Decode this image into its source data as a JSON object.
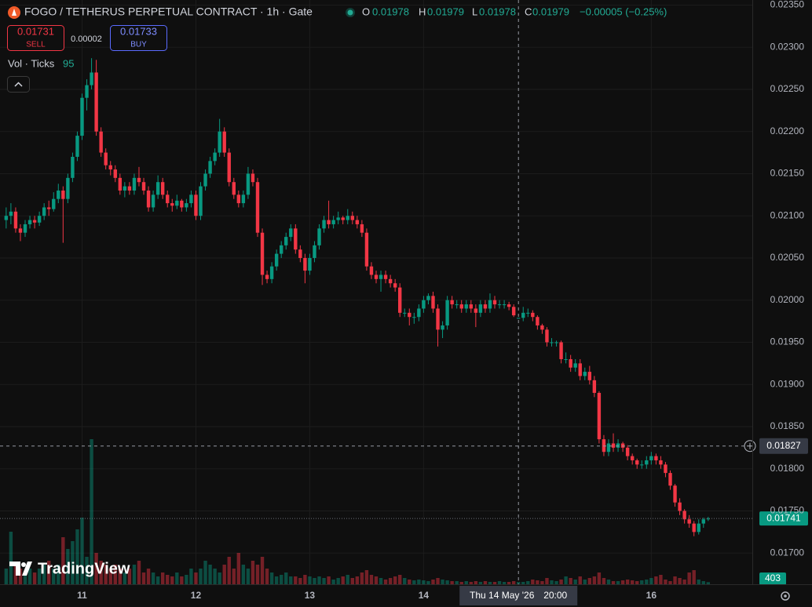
{
  "chart_data": {
    "type": "candlestick",
    "title": "FOGO / TETHERUS PERPETUAL CONTRACT · 1h · Gate",
    "legend": {
      "o_label": "O",
      "h_label": "H",
      "l_label": "L",
      "c_label": "C",
      "change": "−0.00005 (−0.25%)"
    },
    "sell": {
      "price": 0.01731,
      "label": "SELL"
    },
    "spread": 2e-05,
    "buy": {
      "price": 0.01733,
      "label": "BUY"
    },
    "volume_label": "Vol · Ticks",
    "ticks_value": 95,
    "watermark": "TradingView",
    "up_color": "#089981",
    "down_color": "#f23645",
    "ohlc": [
      [
        0.02095,
        0.0211,
        0.02085,
        0.021
      ],
      [
        0.021,
        0.02115,
        0.0209,
        0.02105
      ],
      [
        0.02105,
        0.0211,
        0.0208,
        0.02085
      ],
      [
        0.02085,
        0.0209,
        0.0207,
        0.0208
      ],
      [
        0.0208,
        0.02095,
        0.02075,
        0.0209
      ],
      [
        0.0209,
        0.021,
        0.02085,
        0.02095
      ],
      [
        0.02095,
        0.021,
        0.02085,
        0.02092
      ],
      [
        0.02092,
        0.02105,
        0.02088,
        0.021
      ],
      [
        0.021,
        0.02115,
        0.02095,
        0.0211
      ],
      [
        0.0211,
        0.02118,
        0.021,
        0.02108
      ],
      [
        0.02108,
        0.02128,
        0.02105,
        0.0212
      ],
      [
        0.0212,
        0.02138,
        0.02115,
        0.0213
      ],
      [
        0.0213,
        0.02135,
        0.02068,
        0.0212
      ],
      [
        0.0212,
        0.0215,
        0.02115,
        0.02145
      ],
      [
        0.02145,
        0.02175,
        0.0214,
        0.0217
      ],
      [
        0.0217,
        0.022,
        0.02165,
        0.02195
      ],
      [
        0.02195,
        0.02245,
        0.0219,
        0.0224
      ],
      [
        0.0224,
        0.02262,
        0.02225,
        0.02255
      ],
      [
        0.02255,
        0.02287,
        0.0225,
        0.0227
      ],
      [
        0.0227,
        0.02285,
        0.02195,
        0.022
      ],
      [
        0.022,
        0.02205,
        0.0217,
        0.02175
      ],
      [
        0.02175,
        0.0218,
        0.02155,
        0.0216
      ],
      [
        0.0216,
        0.02165,
        0.02148,
        0.02155
      ],
      [
        0.02155,
        0.0216,
        0.0214,
        0.02145
      ],
      [
        0.02145,
        0.0215,
        0.02125,
        0.0213
      ],
      [
        0.0213,
        0.0214,
        0.02122,
        0.02135
      ],
      [
        0.02135,
        0.0214,
        0.02125,
        0.0213
      ],
      [
        0.0213,
        0.0215,
        0.02125,
        0.02145
      ],
      [
        0.02145,
        0.02158,
        0.02135,
        0.0214
      ],
      [
        0.0214,
        0.02145,
        0.02125,
        0.0213
      ],
      [
        0.0213,
        0.02135,
        0.02105,
        0.0211
      ],
      [
        0.0211,
        0.0213,
        0.02105,
        0.02125
      ],
      [
        0.02125,
        0.02148,
        0.0212,
        0.0214
      ],
      [
        0.0214,
        0.02145,
        0.0212,
        0.02125
      ],
      [
        0.02125,
        0.0213,
        0.0211,
        0.02115
      ],
      [
        0.02115,
        0.0212,
        0.02105,
        0.02112
      ],
      [
        0.02112,
        0.02125,
        0.02108,
        0.02118
      ],
      [
        0.02118,
        0.0212,
        0.02105,
        0.0211
      ],
      [
        0.0211,
        0.0212,
        0.02105,
        0.02115
      ],
      [
        0.02115,
        0.0213,
        0.0211,
        0.02125
      ],
      [
        0.02125,
        0.0213,
        0.02095,
        0.021
      ],
      [
        0.021,
        0.0214,
        0.02095,
        0.02135
      ],
      [
        0.02135,
        0.02155,
        0.0213,
        0.0215
      ],
      [
        0.0215,
        0.0217,
        0.02145,
        0.02165
      ],
      [
        0.02165,
        0.0218,
        0.0216,
        0.02175
      ],
      [
        0.02175,
        0.02215,
        0.0217,
        0.022
      ],
      [
        0.022,
        0.02205,
        0.0217,
        0.02175
      ],
      [
        0.02175,
        0.0218,
        0.02135,
        0.0214
      ],
      [
        0.0214,
        0.02145,
        0.0212,
        0.02125
      ],
      [
        0.02125,
        0.0213,
        0.0211,
        0.02115
      ],
      [
        0.02115,
        0.0213,
        0.0211,
        0.02125
      ],
      [
        0.02125,
        0.02158,
        0.0212,
        0.0215
      ],
      [
        0.0215,
        0.02155,
        0.02135,
        0.0214
      ],
      [
        0.0214,
        0.02145,
        0.02075,
        0.0208
      ],
      [
        0.0208,
        0.02085,
        0.02018,
        0.0203
      ],
      [
        0.0203,
        0.02035,
        0.0202,
        0.02025
      ],
      [
        0.02025,
        0.02045,
        0.0202,
        0.0204
      ],
      [
        0.0204,
        0.0206,
        0.02035,
        0.02055
      ],
      [
        0.02055,
        0.0207,
        0.0205,
        0.02065
      ],
      [
        0.02065,
        0.0208,
        0.0206,
        0.02075
      ],
      [
        0.02075,
        0.0209,
        0.0207,
        0.02085
      ],
      [
        0.02085,
        0.0209,
        0.02055,
        0.0206
      ],
      [
        0.0206,
        0.02065,
        0.02045,
        0.0205
      ],
      [
        0.0205,
        0.02055,
        0.0202,
        0.02035
      ],
      [
        0.02035,
        0.02055,
        0.0203,
        0.0205
      ],
      [
        0.0205,
        0.0207,
        0.02045,
        0.02065
      ],
      [
        0.02065,
        0.0209,
        0.0206,
        0.02085
      ],
      [
        0.02085,
        0.021,
        0.0208,
        0.02095
      ],
      [
        0.02095,
        0.02118,
        0.02085,
        0.0209
      ],
      [
        0.0209,
        0.021,
        0.02085,
        0.02095
      ],
      [
        0.02095,
        0.02105,
        0.0209,
        0.02098
      ],
      [
        0.02098,
        0.021,
        0.0209,
        0.02095
      ],
      [
        0.02095,
        0.02108,
        0.0209,
        0.021
      ],
      [
        0.021,
        0.02105,
        0.0209,
        0.02095
      ],
      [
        0.02095,
        0.021,
        0.02085,
        0.0209
      ],
      [
        0.0209,
        0.02095,
        0.02075,
        0.0208
      ],
      [
        0.0208,
        0.02085,
        0.02035,
        0.0204
      ],
      [
        0.0204,
        0.02045,
        0.02025,
        0.0203
      ],
      [
        0.0203,
        0.02035,
        0.0202,
        0.02025
      ],
      [
        0.02025,
        0.02035,
        0.0201,
        0.0203
      ],
      [
        0.0203,
        0.02035,
        0.0202,
        0.02025
      ],
      [
        0.02025,
        0.0203,
        0.02015,
        0.0202
      ],
      [
        0.0202,
        0.02025,
        0.0201,
        0.02015
      ],
      [
        0.02015,
        0.0202,
        0.0198,
        0.01985
      ],
      [
        0.01985,
        0.0199,
        0.0198,
        0.01985
      ],
      [
        0.01985,
        0.0199,
        0.0197,
        0.0198
      ],
      [
        0.0198,
        0.01985,
        0.01972,
        0.0198
      ],
      [
        0.0198,
        0.01995,
        0.01975,
        0.0199
      ],
      [
        0.0199,
        0.02005,
        0.01985,
        0.02
      ],
      [
        0.02,
        0.02008,
        0.01995,
        0.02005
      ],
      [
        0.02005,
        0.0201,
        0.01985,
        0.0199
      ],
      [
        0.0199,
        0.01995,
        0.01945,
        0.01965
      ],
      [
        0.01965,
        0.01975,
        0.01955,
        0.0197
      ],
      [
        0.0197,
        0.02005,
        0.01965,
        0.02
      ],
      [
        0.02,
        0.02005,
        0.0199,
        0.01995
      ],
      [
        0.01995,
        0.02,
        0.0199,
        0.01995
      ],
      [
        0.01995,
        0.02,
        0.01985,
        0.0199
      ],
      [
        0.0199,
        0.02,
        0.01985,
        0.01995
      ],
      [
        0.01995,
        0.02,
        0.01985,
        0.0199
      ],
      [
        0.0199,
        0.01995,
        0.01968,
        0.01985
      ],
      [
        0.01985,
        0.02,
        0.0198,
        0.01995
      ],
      [
        0.01995,
        0.02,
        0.01985,
        0.0199
      ],
      [
        0.0199,
        0.02008,
        0.01985,
        0.02
      ],
      [
        0.02,
        0.02005,
        0.0199,
        0.01995
      ],
      [
        0.01995,
        0.02,
        0.0199,
        0.01995
      ],
      [
        0.01995,
        0.02,
        0.0199,
        0.01995
      ],
      [
        0.01995,
        0.01998,
        0.01988,
        0.01992
      ],
      [
        0.01992,
        0.01995,
        0.0198,
        0.01982
      ],
      [
        0.01978,
        0.01979,
        0.01978,
        0.01979
      ],
      [
        0.01979,
        0.01992,
        0.01975,
        0.01985
      ],
      [
        0.01985,
        0.0199,
        0.0198,
        0.01985
      ],
      [
        0.01985,
        0.01988,
        0.01975,
        0.0198
      ],
      [
        0.0198,
        0.01982,
        0.01965,
        0.0197
      ],
      [
        0.0197,
        0.01972,
        0.0196,
        0.01965
      ],
      [
        0.01965,
        0.01968,
        0.01945,
        0.0195
      ],
      [
        0.0195,
        0.01955,
        0.01945,
        0.0195
      ],
      [
        0.0195,
        0.01952,
        0.01945,
        0.0195
      ],
      [
        0.0195,
        0.01952,
        0.01925,
        0.0193
      ],
      [
        0.0193,
        0.01938,
        0.01925,
        0.0193
      ],
      [
        0.0193,
        0.01935,
        0.01915,
        0.0192
      ],
      [
        0.0192,
        0.0193,
        0.01915,
        0.01925
      ],
      [
        0.01925,
        0.0193,
        0.01905,
        0.0191
      ],
      [
        0.0191,
        0.0192,
        0.01905,
        0.01915
      ],
      [
        0.01915,
        0.01922,
        0.019,
        0.01905
      ],
      [
        0.01905,
        0.0191,
        0.01885,
        0.0189
      ],
      [
        0.0189,
        0.01892,
        0.0183,
        0.01835
      ],
      [
        0.01835,
        0.0184,
        0.01815,
        0.0182
      ],
      [
        0.0182,
        0.01835,
        0.01815,
        0.0183
      ],
      [
        0.0183,
        0.01842,
        0.0182,
        0.01825
      ],
      [
        0.01825,
        0.01835,
        0.0182,
        0.0183
      ],
      [
        0.0183,
        0.01832,
        0.0182,
        0.01825
      ],
      [
        0.01825,
        0.01828,
        0.0181,
        0.01815
      ],
      [
        0.01815,
        0.01818,
        0.01805,
        0.0181
      ],
      [
        0.0181,
        0.01812,
        0.018,
        0.01805
      ],
      [
        0.01805,
        0.0181,
        0.018,
        0.01805
      ],
      [
        0.01805,
        0.01815,
        0.018,
        0.0181
      ],
      [
        0.0181,
        0.0182,
        0.01805,
        0.01815
      ],
      [
        0.01815,
        0.01818,
        0.01805,
        0.0181
      ],
      [
        0.0181,
        0.01815,
        0.018,
        0.01805
      ],
      [
        0.01805,
        0.01808,
        0.0179,
        0.01795
      ],
      [
        0.01795,
        0.01798,
        0.01775,
        0.0178
      ],
      [
        0.0178,
        0.01782,
        0.01755,
        0.0176
      ],
      [
        0.0176,
        0.01765,
        0.01745,
        0.0175
      ],
      [
        0.0175,
        0.01752,
        0.01735,
        0.0174
      ],
      [
        0.0174,
        0.01745,
        0.0173,
        0.01735
      ],
      [
        0.01735,
        0.01738,
        0.0172,
        0.01725
      ],
      [
        0.01725,
        0.0174,
        0.01722,
        0.01735
      ],
      [
        0.01735,
        0.01742,
        0.0173,
        0.0174
      ],
      [
        0.0174,
        0.01743,
        0.01738,
        0.01741
      ]
    ],
    "volumes": [
      3000,
      10050,
      3750,
      3000,
      2250,
      3000,
      2250,
      3000,
      3750,
      4500,
      3000,
      3750,
      9000,
      6750,
      8250,
      10500,
      12750,
      5250,
      27750,
      6000,
      4500,
      3750,
      3000,
      3750,
      3000,
      2250,
      3000,
      3750,
      4500,
      2250,
      3000,
      2250,
      1500,
      2250,
      1800,
      1500,
      2250,
      1500,
      1800,
      3000,
      2250,
      3000,
      4500,
      3750,
      3000,
      2250,
      3750,
      5250,
      3000,
      6000,
      3750,
      3000,
      4500,
      3750,
      5250,
      3000,
      2250,
      1500,
      1800,
      2250,
      1500,
      1500,
      1200,
      1800,
      1500,
      1200,
      1500,
      1200,
      1500,
      900,
      1200,
      1500,
      1800,
      1200,
      1500,
      2250,
      2700,
      1800,
      1500,
      1200,
      900,
      1200,
      1500,
      1800,
      1200,
      900,
      750,
      900,
      750,
      600,
      900,
      1200,
      900,
      750,
      600,
      600,
      450,
      600,
      450,
      600,
      450,
      600,
      450,
      450,
      600,
      450,
      450,
      600,
      450,
      450,
      600,
      900,
      750,
      600,
      1200,
      750,
      600,
      900,
      1500,
      1200,
      900,
      1500,
      900,
      1200,
      1500,
      2250,
      1200,
      900,
      600,
      600,
      750,
      900,
      750,
      600,
      750,
      900,
      1200,
      1500,
      1800,
      900,
      600,
      1500,
      1200,
      900,
      2250,
      2700,
      900,
      600,
      403
    ],
    "xlim": [
      -1.3,
      157.3
    ],
    "xticks": [
      {
        "value": 16,
        "label": "11"
      },
      {
        "value": 40,
        "label": "12"
      },
      {
        "value": 64,
        "label": "13"
      },
      {
        "value": 88,
        "label": "14"
      },
      {
        "value": 136,
        "label": "16"
      }
    ],
    "ylim": [
      0.01663,
      0.02356
    ],
    "yticks": [
      {
        "value": 0.0235,
        "label": "0.02350"
      },
      {
        "value": 0.023,
        "label": "0.02300"
      },
      {
        "value": 0.0225,
        "label": "0.02250"
      },
      {
        "value": 0.022,
        "label": "0.02200"
      },
      {
        "value": 0.0215,
        "label": "0.02150"
      },
      {
        "value": 0.021,
        "label": "0.02100"
      },
      {
        "value": 0.0205,
        "label": "0.02050"
      },
      {
        "value": 0.02,
        "label": "0.02000"
      },
      {
        "value": 0.0195,
        "label": "0.01950"
      },
      {
        "value": 0.019,
        "label": "0.01900"
      },
      {
        "value": 0.0185,
        "label": "0.01850"
      },
      {
        "value": 0.018,
        "label": "0.01800"
      },
      {
        "value": 0.0175,
        "label": "0.01750"
      },
      {
        "value": 0.017,
        "label": "0.01700"
      }
    ],
    "grid": true,
    "crosshair": {
      "x": 108,
      "price": 0.01827,
      "date": "Thu 14 May '26",
      "time": "20:00"
    }
  }
}
